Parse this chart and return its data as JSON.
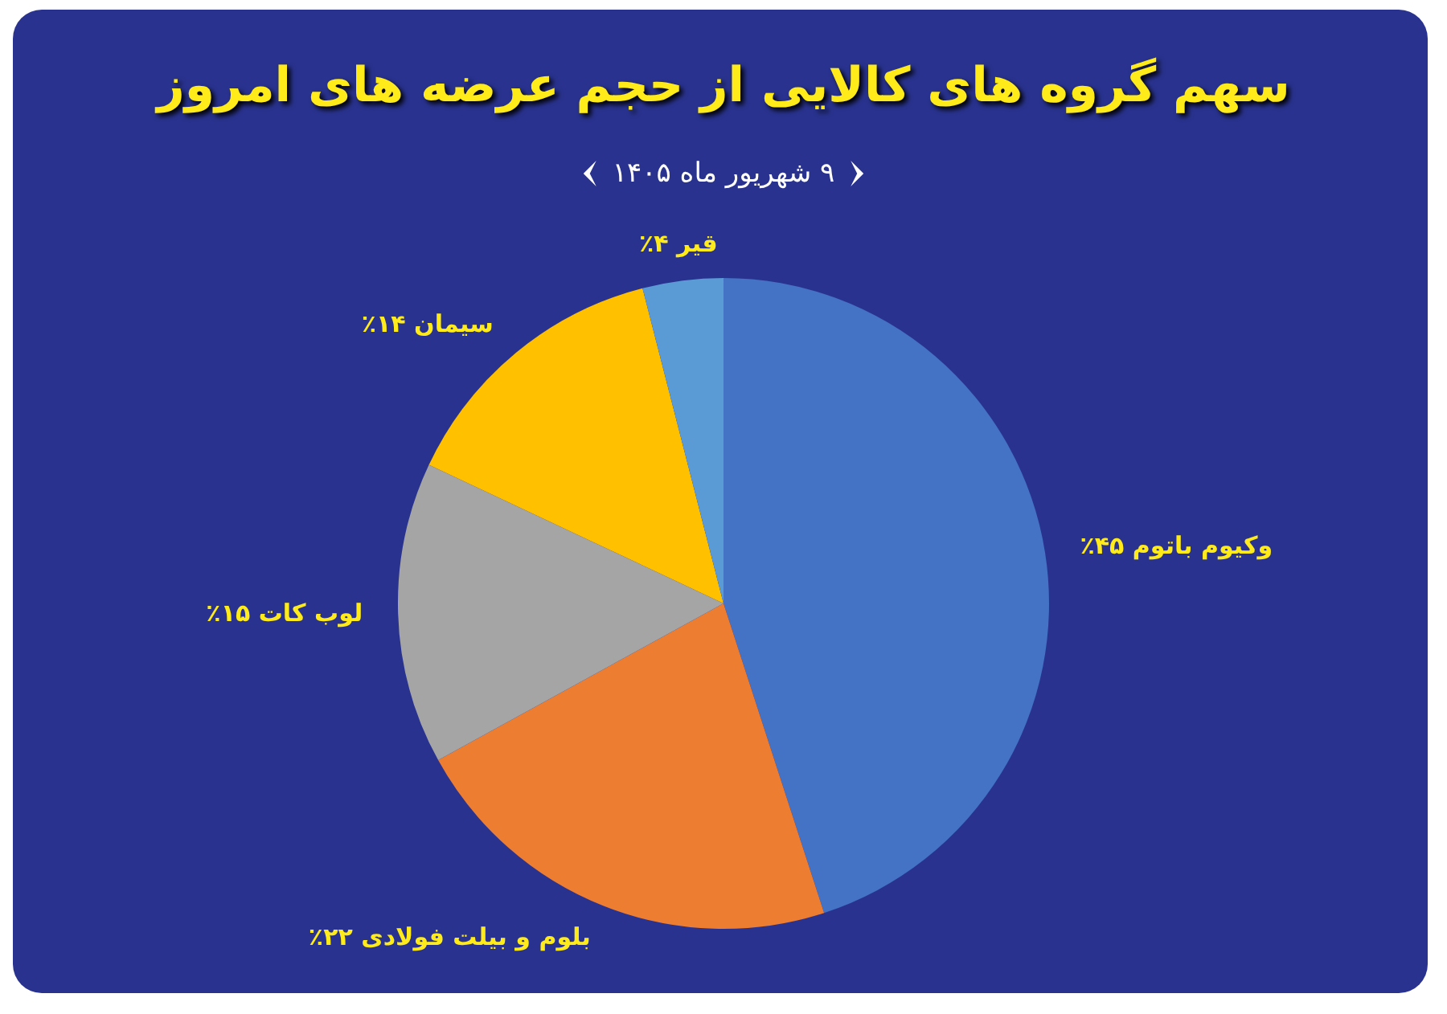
{
  "chart_data": {
    "type": "pie",
    "title": "سهم گروه های کالایی از حجم عرضه های امروز",
    "subtitle": "۹ شهریور ماه ۱۴۰۵",
    "categories": [
      "وکیوم باتوم",
      "بلوم و بیلت فولادی",
      "لوب کات",
      "سیمان",
      "قیر"
    ],
    "values": [
      45,
      22,
      15,
      14,
      4
    ],
    "colors": [
      "#4472c4",
      "#ed7d31",
      "#a5a5a5",
      "#ffc000",
      "#5b9bd5"
    ],
    "value_labels": [
      "۴۵٪",
      "۲۲٪",
      "۱۵٪",
      "۱۴٪",
      "۴٪"
    ],
    "legend": false
  }
}
